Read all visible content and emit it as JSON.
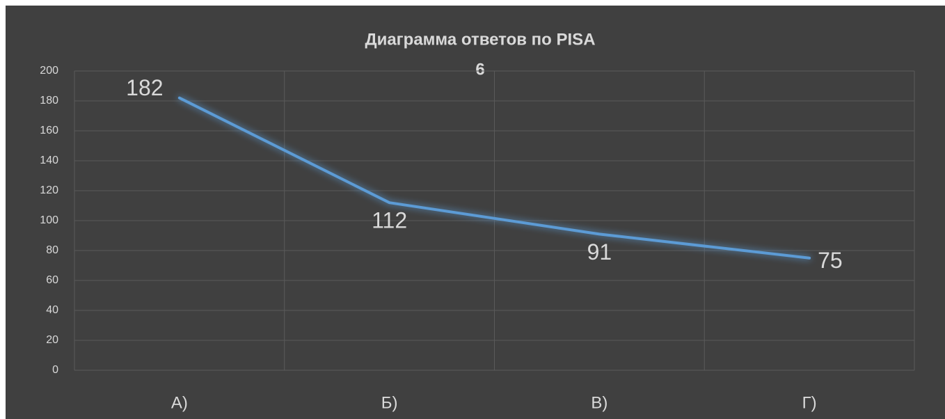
{
  "chart_data": {
    "type": "line",
    "title": "Диаграмма ответов по PISA",
    "subtitle": "6",
    "categories": [
      "А)",
      "Б)",
      "В)",
      "Г)"
    ],
    "values": [
      182,
      112,
      91,
      75
    ],
    "color": "#5b9bd5",
    "ylim": [
      0,
      200
    ],
    "yticks": [
      0,
      20,
      40,
      60,
      80,
      100,
      120,
      140,
      160,
      180,
      200
    ],
    "grid": true
  }
}
